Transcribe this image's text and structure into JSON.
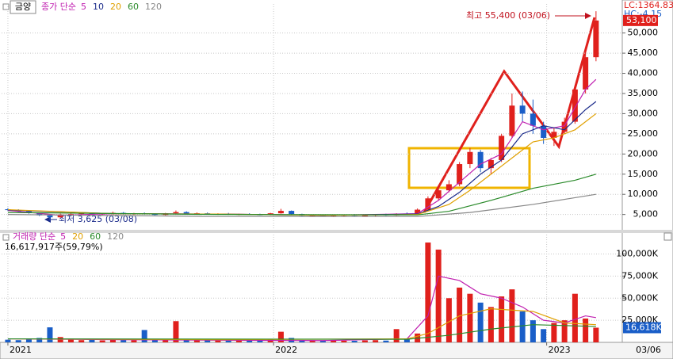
{
  "chart_data": [
    {
      "type": "candlestick",
      "title": "금양",
      "legend_label": "종가 단순",
      "up_color": "#e0201c",
      "down_color": "#1a5ec8",
      "open": [
        6300,
        6100,
        5800,
        5400,
        4800,
        4300,
        5000,
        5100,
        5300,
        5000,
        5200,
        5400,
        5100,
        5300,
        5100,
        4900,
        5300,
        5600,
        5200,
        5300,
        5100,
        5200,
        5000,
        5100,
        5000,
        4900,
        5300,
        5900,
        5100,
        4700,
        4800,
        4600,
        4700,
        4900,
        4700,
        4800,
        5000,
        4800,
        5200,
        5000,
        6200,
        9000,
        11000,
        12500,
        17500,
        20500,
        16500,
        18500,
        24500,
        32000,
        30000,
        27000,
        24000,
        25500,
        28000,
        36000,
        44000
      ],
      "high": [
        6600,
        6300,
        6000,
        5500,
        5000,
        5200,
        5400,
        5600,
        5500,
        5300,
        5700,
        5600,
        5400,
        5500,
        5300,
        5400,
        6000,
        5800,
        5500,
        5500,
        5300,
        5400,
        5200,
        5300,
        5200,
        5400,
        6400,
        6000,
        5200,
        4900,
        5000,
        4800,
        5000,
        5100,
        4900,
        5100,
        5200,
        5300,
        5500,
        6500,
        9500,
        11500,
        13500,
        18000,
        21500,
        21000,
        19000,
        25000,
        35000,
        35500,
        33500,
        28000,
        26500,
        29000,
        37000,
        45000,
        55400
      ],
      "low": [
        5900,
        5600,
        5200,
        4600,
        3625,
        4200,
        4800,
        4900,
        4900,
        4800,
        5000,
        5000,
        4900,
        5000,
        4800,
        4800,
        5200,
        5100,
        5000,
        5000,
        4900,
        4900,
        4800,
        4900,
        4800,
        4800,
        5200,
        5000,
        4600,
        4500,
        4500,
        4400,
        4500,
        4600,
        4500,
        4600,
        4700,
        4700,
        4900,
        4900,
        6000,
        8500,
        10500,
        12000,
        16500,
        15500,
        15000,
        18000,
        24000,
        28000,
        25000,
        22500,
        22000,
        25000,
        27500,
        35000,
        43000
      ],
      "close": [
        6100,
        5800,
        5400,
        4800,
        4300,
        5000,
        5100,
        5300,
        5000,
        5200,
        5400,
        5100,
        5300,
        5100,
        4900,
        5300,
        5600,
        5200,
        5300,
        5100,
        5200,
        5000,
        5100,
        5000,
        4900,
        5300,
        5900,
        5100,
        4700,
        4800,
        4600,
        4700,
        4900,
        4700,
        4800,
        5000,
        4800,
        5200,
        5000,
        6200,
        9000,
        11000,
        12500,
        17500,
        20500,
        16500,
        18500,
        24500,
        32000,
        30000,
        27000,
        24000,
        25500,
        28000,
        36000,
        44000,
        53100
      ],
      "series": [
        {
          "name": "5",
          "color": "#c020b0",
          "x": [
            0,
            5,
            10,
            20,
            30,
            39,
            41,
            43,
            45,
            47,
            49,
            51,
            53,
            55,
            56
          ],
          "values": [
            6000,
            4800,
            5200,
            5100,
            4800,
            5200,
            8500,
            13000,
            17500,
            20000,
            28000,
            26000,
            27000,
            36000,
            38500
          ]
        },
        {
          "name": "10",
          "color": "#1a2a8a",
          "x": [
            0,
            10,
            20,
            30,
            39,
            41,
            43,
            45,
            47,
            49,
            51,
            53,
            55,
            56
          ],
          "values": [
            6100,
            5200,
            5100,
            4800,
            5100,
            7000,
            10500,
            15000,
            18500,
            25000,
            27000,
            26000,
            31000,
            33000
          ]
        },
        {
          "name": "20",
          "color": "#e0a000",
          "x": [
            0,
            10,
            20,
            30,
            39,
            42,
            44,
            46,
            48,
            50,
            52,
            54,
            56
          ],
          "values": [
            6200,
            5200,
            5100,
            4800,
            5000,
            7500,
            11000,
            15000,
            19000,
            23000,
            24000,
            26000,
            30000
          ]
        },
        {
          "name": "60",
          "color": "#2a8a2a",
          "x": [
            0,
            20,
            39,
            42,
            46,
            50,
            54,
            56
          ],
          "values": [
            5500,
            5000,
            4900,
            5800,
            8500,
            11500,
            13500,
            15000
          ]
        },
        {
          "name": "120",
          "color": "#888888",
          "x": [
            0,
            20,
            39,
            44,
            50,
            56
          ],
          "values": [
            5000,
            4500,
            4500,
            5500,
            7500,
            10000
          ]
        }
      ],
      "ylim": [
        1200,
        57200
      ],
      "yticks": [
        {
          "value": 5000,
          "label": "5,000"
        },
        {
          "value": 10000,
          "label": "10,000"
        },
        {
          "value": 15000,
          "label": "15,000"
        },
        {
          "value": 20000,
          "label": "20,000"
        },
        {
          "value": 25000,
          "label": "25,000"
        },
        {
          "value": 30000,
          "label": "30,000"
        },
        {
          "value": 35000,
          "label": "35,000"
        },
        {
          "value": 40000,
          "label": "40,000"
        },
        {
          "value": 45000,
          "label": "45,000"
        },
        {
          "value": 50000,
          "label": "50,000"
        }
      ],
      "xlim": [
        -0.6,
        58.5
      ],
      "xticks": [
        {
          "value": 0,
          "label": "2021"
        },
        {
          "value": 25.3,
          "label": "2022"
        },
        {
          "value": 51.3,
          "label": "2023"
        }
      ],
      "x_end_label": "03/06",
      "grid": true,
      "high_annotation": "최고 55,400 (03/06)",
      "low_annotation": "최저 3,625 (03/08)",
      "indicators": [
        "LC:1364.83",
        "HC:-4.15"
      ],
      "last_close_label": "53,100"
    },
    {
      "type": "bar",
      "title": "거래량 단순",
      "subtitle": "16,617,917주(59,79%)",
      "values": [
        3000,
        2500,
        3500,
        5000,
        17000,
        6000,
        3500,
        2500,
        2800,
        2200,
        3000,
        2600,
        2400,
        14000,
        3000,
        2500,
        24000,
        4000,
        3000,
        2500,
        2200,
        2000,
        2300,
        2100,
        2500,
        3000,
        12000,
        5000,
        2500,
        2000,
        1800,
        2000,
        1900,
        1800,
        2200,
        2500,
        2000,
        15000,
        4000,
        10000,
        113000,
        105000,
        50000,
        62000,
        55000,
        45000,
        40000,
        52000,
        60000,
        35000,
        25000,
        15000,
        22000,
        25000,
        55000,
        27000,
        16618
      ],
      "series": [
        {
          "name": "5",
          "color": "#c020b0",
          "x": [
            0,
            10,
            20,
            30,
            38,
            40,
            41,
            43,
            45,
            47,
            49,
            51,
            53,
            55,
            56
          ],
          "values": [
            4000,
            3000,
            2500,
            2000,
            4000,
            30000,
            75000,
            70000,
            55000,
            50000,
            40000,
            25000,
            22000,
            30000,
            28000
          ]
        },
        {
          "name": "20",
          "color": "#e0a000",
          "x": [
            0,
            20,
            38,
            40,
            43,
            46,
            50,
            53,
            56
          ],
          "values": [
            4000,
            3000,
            4000,
            10000,
            30000,
            38000,
            35000,
            22000,
            20000
          ]
        },
        {
          "name": "60",
          "color": "#2a8a2a",
          "x": [
            0,
            38,
            42,
            46,
            50,
            56
          ],
          "values": [
            4000,
            3500,
            8000,
            15000,
            20000,
            18000
          ]
        },
        {
          "name": "120",
          "color": "#888888",
          "x": [],
          "values": []
        }
      ],
      "ylim": [
        0,
        122000
      ],
      "yticks": [
        {
          "value": 25000,
          "label": "25,000K"
        },
        {
          "value": 50000,
          "label": "50,000K"
        },
        {
          "value": 75000,
          "label": "75,000K"
        },
        {
          "value": 100000,
          "label": "100,000K"
        }
      ],
      "last_value_label": "16,618K",
      "grid": true
    }
  ]
}
